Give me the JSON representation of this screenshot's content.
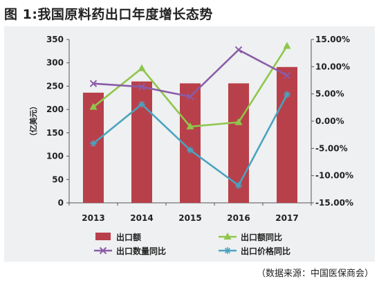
{
  "header": {
    "title": "图 1:我国原料药出口年度增长态势"
  },
  "footer": {
    "source": "（数据来源：中国医保商会）"
  },
  "colors": {
    "bar": "#b8404a",
    "export_yoy": "#8fc64b",
    "quantity_yoy": "#8a5ca8",
    "price_yoy": "#4aa3c0",
    "panel_bg": "#eef0f1"
  },
  "chart_data": {
    "type": "bar",
    "categories": [
      "2013",
      "2014",
      "2015",
      "2016",
      "2017"
    ],
    "ylabel": "（亿美元）",
    "ylim": [
      0,
      350
    ],
    "y_ticks": [
      "0",
      "50",
      "100",
      "150",
      "200",
      "250",
      "300",
      "350"
    ],
    "y2lim": [
      -15,
      15
    ],
    "y2_ticks": [
      "-15.00%",
      "-10.00%",
      "-5.00%",
      "0.00%",
      "5.00%",
      "10.00%",
      "15.00%"
    ],
    "grid": false,
    "legend_position": "bottom",
    "series": [
      {
        "name": "出口额",
        "kind": "bar",
        "axis": "left",
        "values": [
          236,
          260,
          256,
          256,
          291
        ]
      },
      {
        "name": "出口额同比",
        "kind": "line",
        "marker": "triangle",
        "axis": "right",
        "values": [
          2.6,
          9.7,
          -1.0,
          -0.2,
          13.8
        ]
      },
      {
        "name": "出口数量同比",
        "kind": "line",
        "marker": "x",
        "axis": "right",
        "values": [
          6.9,
          6.3,
          4.5,
          13.1,
          8.4
        ]
      },
      {
        "name": "出口价格同比",
        "kind": "line",
        "marker": "star",
        "axis": "right",
        "values": [
          -4.1,
          3.1,
          -5.3,
          -11.8,
          4.9
        ]
      }
    ]
  }
}
